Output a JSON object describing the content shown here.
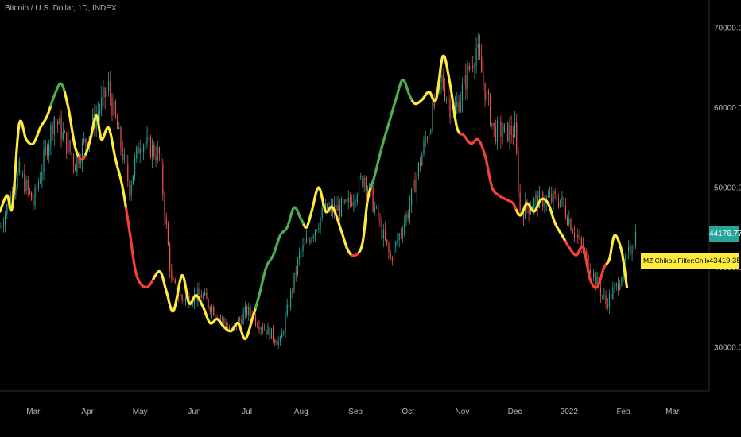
{
  "chart_data": {
    "type": "line",
    "title": "Bitcoin / U.S. Dollar, 1D, INDEX",
    "y_axis": {
      "ticks": [
        30000,
        40000,
        50000,
        60000,
        70000
      ],
      "tick_labels": [
        "30000.00",
        "40000.00",
        "50000.00",
        "60000.00",
        "70000.00"
      ],
      "ylim": [
        24500,
        73500
      ]
    },
    "x_axis": {
      "range": [
        "2021-02-10",
        "2022-03-22"
      ],
      "ticks": [
        "2021-03-01",
        "2021-04-01",
        "2021-05-01",
        "2021-06-01",
        "2021-07-01",
        "2021-08-01",
        "2021-09-01",
        "2021-10-01",
        "2021-11-01",
        "2021-12-01",
        "2022-01-01",
        "2022-02-01",
        "2022-03-01"
      ],
      "tick_labels": [
        "Mar",
        "Apr",
        "May",
        "Jun",
        "Jul",
        "Aug",
        "Sep",
        "Oct",
        "Nov",
        "Dec",
        "2022",
        "Feb",
        "Mar"
      ]
    },
    "last_price": {
      "value": 44176.77,
      "label": "44176.77",
      "color": "#26a69a"
    },
    "indicator": {
      "name": "MZ Chikou Filter:Chikou Span",
      "value": 43419.35,
      "label": "43419.35",
      "color": "#ffeb3b"
    },
    "colors": {
      "up_candle": "#26a69a",
      "down_candle": "#ef5350",
      "bullish": "#4caf50",
      "neutral": "#ffeb3b",
      "bearish": "#f44336"
    },
    "price_series": {
      "name": "Bitcoin / U.S. Dollar",
      "x": [
        "2021-02-10",
        "2021-02-21",
        "2021-03-01",
        "2021-03-13",
        "2021-03-25",
        "2021-04-13",
        "2021-04-25",
        "2021-05-01",
        "2021-05-12",
        "2021-05-19",
        "2021-05-25",
        "2021-06-05",
        "2021-06-22",
        "2021-07-01",
        "2021-07-20",
        "2021-07-31",
        "2021-08-14",
        "2021-08-27",
        "2021-09-06",
        "2021-09-21",
        "2021-10-01",
        "2021-10-11",
        "2021-10-20",
        "2021-10-27",
        "2021-11-09",
        "2021-11-19",
        "2021-12-01",
        "2021-12-04",
        "2021-12-15",
        "2021-12-27",
        "2022-01-10",
        "2022-01-22",
        "2022-01-28",
        "2022-02-08"
      ],
      "y": [
        45000,
        52000,
        48000,
        59000,
        53000,
        62500,
        50000,
        56000,
        54000,
        38000,
        36000,
        36500,
        32000,
        34500,
        30500,
        41500,
        47000,
        47500,
        51500,
        41000,
        47000,
        56000,
        63500,
        59000,
        67500,
        57000,
        57000,
        47000,
        48500,
        48500,
        41500,
        35500,
        37500,
        44176.77
      ]
    },
    "chikou_span": {
      "name": "MZ Chikou Filter:Chikou Span",
      "points": [
        [
          "2021-02-10",
          47000,
          "neutral"
        ],
        [
          "2021-02-14",
          49000,
          "neutral"
        ],
        [
          "2021-02-17",
          47500,
          "neutral"
        ],
        [
          "2021-02-21",
          58000,
          "neutral"
        ],
        [
          "2021-02-25",
          56000,
          "neutral"
        ],
        [
          "2021-03-01",
          55500,
          "neutral"
        ],
        [
          "2021-03-05",
          57500,
          "neutral"
        ],
        [
          "2021-03-09",
          59000,
          "neutral"
        ],
        [
          "2021-03-13",
          61500,
          "bullish"
        ],
        [
          "2021-03-17",
          63000,
          "bullish"
        ],
        [
          "2021-03-21",
          60000,
          "neutral"
        ],
        [
          "2021-03-25",
          55000,
          "neutral"
        ],
        [
          "2021-03-29",
          53500,
          "bearish"
        ],
        [
          "2021-04-02",
          55500,
          "neutral"
        ],
        [
          "2021-04-06",
          59000,
          "neutral"
        ],
        [
          "2021-04-09",
          56000,
          "neutral"
        ],
        [
          "2021-04-13",
          57500,
          "neutral"
        ],
        [
          "2021-04-17",
          53500,
          "neutral"
        ],
        [
          "2021-04-21",
          50000,
          "neutral"
        ],
        [
          "2021-04-25",
          44500,
          "bearish"
        ],
        [
          "2021-04-29",
          39000,
          "bearish"
        ],
        [
          "2021-05-05",
          37500,
          "bearish"
        ],
        [
          "2021-05-12",
          39500,
          "neutral"
        ],
        [
          "2021-05-16",
          37000,
          "neutral"
        ],
        [
          "2021-05-20",
          34500,
          "neutral"
        ],
        [
          "2021-05-25",
          39000,
          "neutral"
        ],
        [
          "2021-05-29",
          35500,
          "neutral"
        ],
        [
          "2021-06-02",
          36500,
          "neutral"
        ],
        [
          "2021-06-06",
          35000,
          "neutral"
        ],
        [
          "2021-06-10",
          33000,
          "neutral"
        ],
        [
          "2021-06-14",
          33500,
          "neutral"
        ],
        [
          "2021-06-18",
          32500,
          "neutral"
        ],
        [
          "2021-06-22",
          32000,
          "neutral"
        ],
        [
          "2021-06-26",
          33000,
          "neutral"
        ],
        [
          "2021-06-30",
          31000,
          "neutral"
        ],
        [
          "2021-07-04",
          33500,
          "neutral"
        ],
        [
          "2021-07-08",
          36500,
          "bullish"
        ],
        [
          "2021-07-12",
          40000,
          "bullish"
        ],
        [
          "2021-07-16",
          41500,
          "bullish"
        ],
        [
          "2021-07-20",
          44000,
          "bullish"
        ],
        [
          "2021-07-24",
          45000,
          "bullish"
        ],
        [
          "2021-07-28",
          47500,
          "bullish"
        ],
        [
          "2021-08-01",
          46000,
          "bullish"
        ],
        [
          "2021-08-04",
          45000,
          "neutral"
        ],
        [
          "2021-08-07",
          47000,
          "neutral"
        ],
        [
          "2021-08-11",
          50000,
          "neutral"
        ],
        [
          "2021-08-15",
          47000,
          "neutral"
        ],
        [
          "2021-08-19",
          47500,
          "neutral"
        ],
        [
          "2021-08-24",
          44500,
          "neutral"
        ],
        [
          "2021-08-28",
          42000,
          "neutral"
        ],
        [
          "2021-09-01",
          41500,
          "bearish"
        ],
        [
          "2021-09-05",
          43000,
          "neutral"
        ],
        [
          "2021-09-08",
          48500,
          "neutral"
        ],
        [
          "2021-09-12",
          51500,
          "bullish"
        ],
        [
          "2021-09-16",
          55000,
          "bullish"
        ],
        [
          "2021-09-20",
          58000,
          "bullish"
        ],
        [
          "2021-09-24",
          61000,
          "bullish"
        ],
        [
          "2021-09-28",
          63500,
          "bullish"
        ],
        [
          "2021-10-02",
          61500,
          "bullish"
        ],
        [
          "2021-10-05",
          60500,
          "neutral"
        ],
        [
          "2021-10-09",
          61000,
          "neutral"
        ],
        [
          "2021-10-13",
          62000,
          "neutral"
        ],
        [
          "2021-10-17",
          61000,
          "neutral"
        ],
        [
          "2021-10-21",
          66500,
          "neutral"
        ],
        [
          "2021-10-25",
          63000,
          "neutral"
        ],
        [
          "2021-10-29",
          57500,
          "neutral"
        ],
        [
          "2021-11-02",
          56500,
          "bearish"
        ],
        [
          "2021-11-06",
          55500,
          "bearish"
        ],
        [
          "2021-11-10",
          56000,
          "bearish"
        ],
        [
          "2021-11-14",
          54000,
          "bearish"
        ],
        [
          "2021-11-18",
          50000,
          "bearish"
        ],
        [
          "2021-11-22",
          49000,
          "bearish"
        ],
        [
          "2021-11-26",
          48500,
          "bearish"
        ],
        [
          "2021-11-30",
          48000,
          "bearish"
        ],
        [
          "2021-12-04",
          46500,
          "neutral"
        ],
        [
          "2021-12-08",
          48000,
          "neutral"
        ],
        [
          "2021-12-12",
          47000,
          "neutral"
        ],
        [
          "2021-12-16",
          48500,
          "neutral"
        ],
        [
          "2021-12-20",
          48000,
          "neutral"
        ],
        [
          "2021-12-24",
          45500,
          "neutral"
        ],
        [
          "2021-12-28",
          44000,
          "neutral"
        ],
        [
          "2022-01-01",
          42500,
          "bearish"
        ],
        [
          "2022-01-05",
          41500,
          "bearish"
        ],
        [
          "2022-01-09",
          42500,
          "bearish"
        ],
        [
          "2022-01-13",
          38500,
          "bearish"
        ],
        [
          "2022-01-17",
          37500,
          "bearish"
        ],
        [
          "2022-01-21",
          40000,
          "bearish"
        ],
        [
          "2022-01-24",
          41000,
          "neutral"
        ],
        [
          "2022-01-27",
          44000,
          "neutral"
        ],
        [
          "2022-01-31",
          42000,
          "neutral"
        ],
        [
          "2022-02-03",
          37500,
          "neutral"
        ]
      ]
    }
  }
}
